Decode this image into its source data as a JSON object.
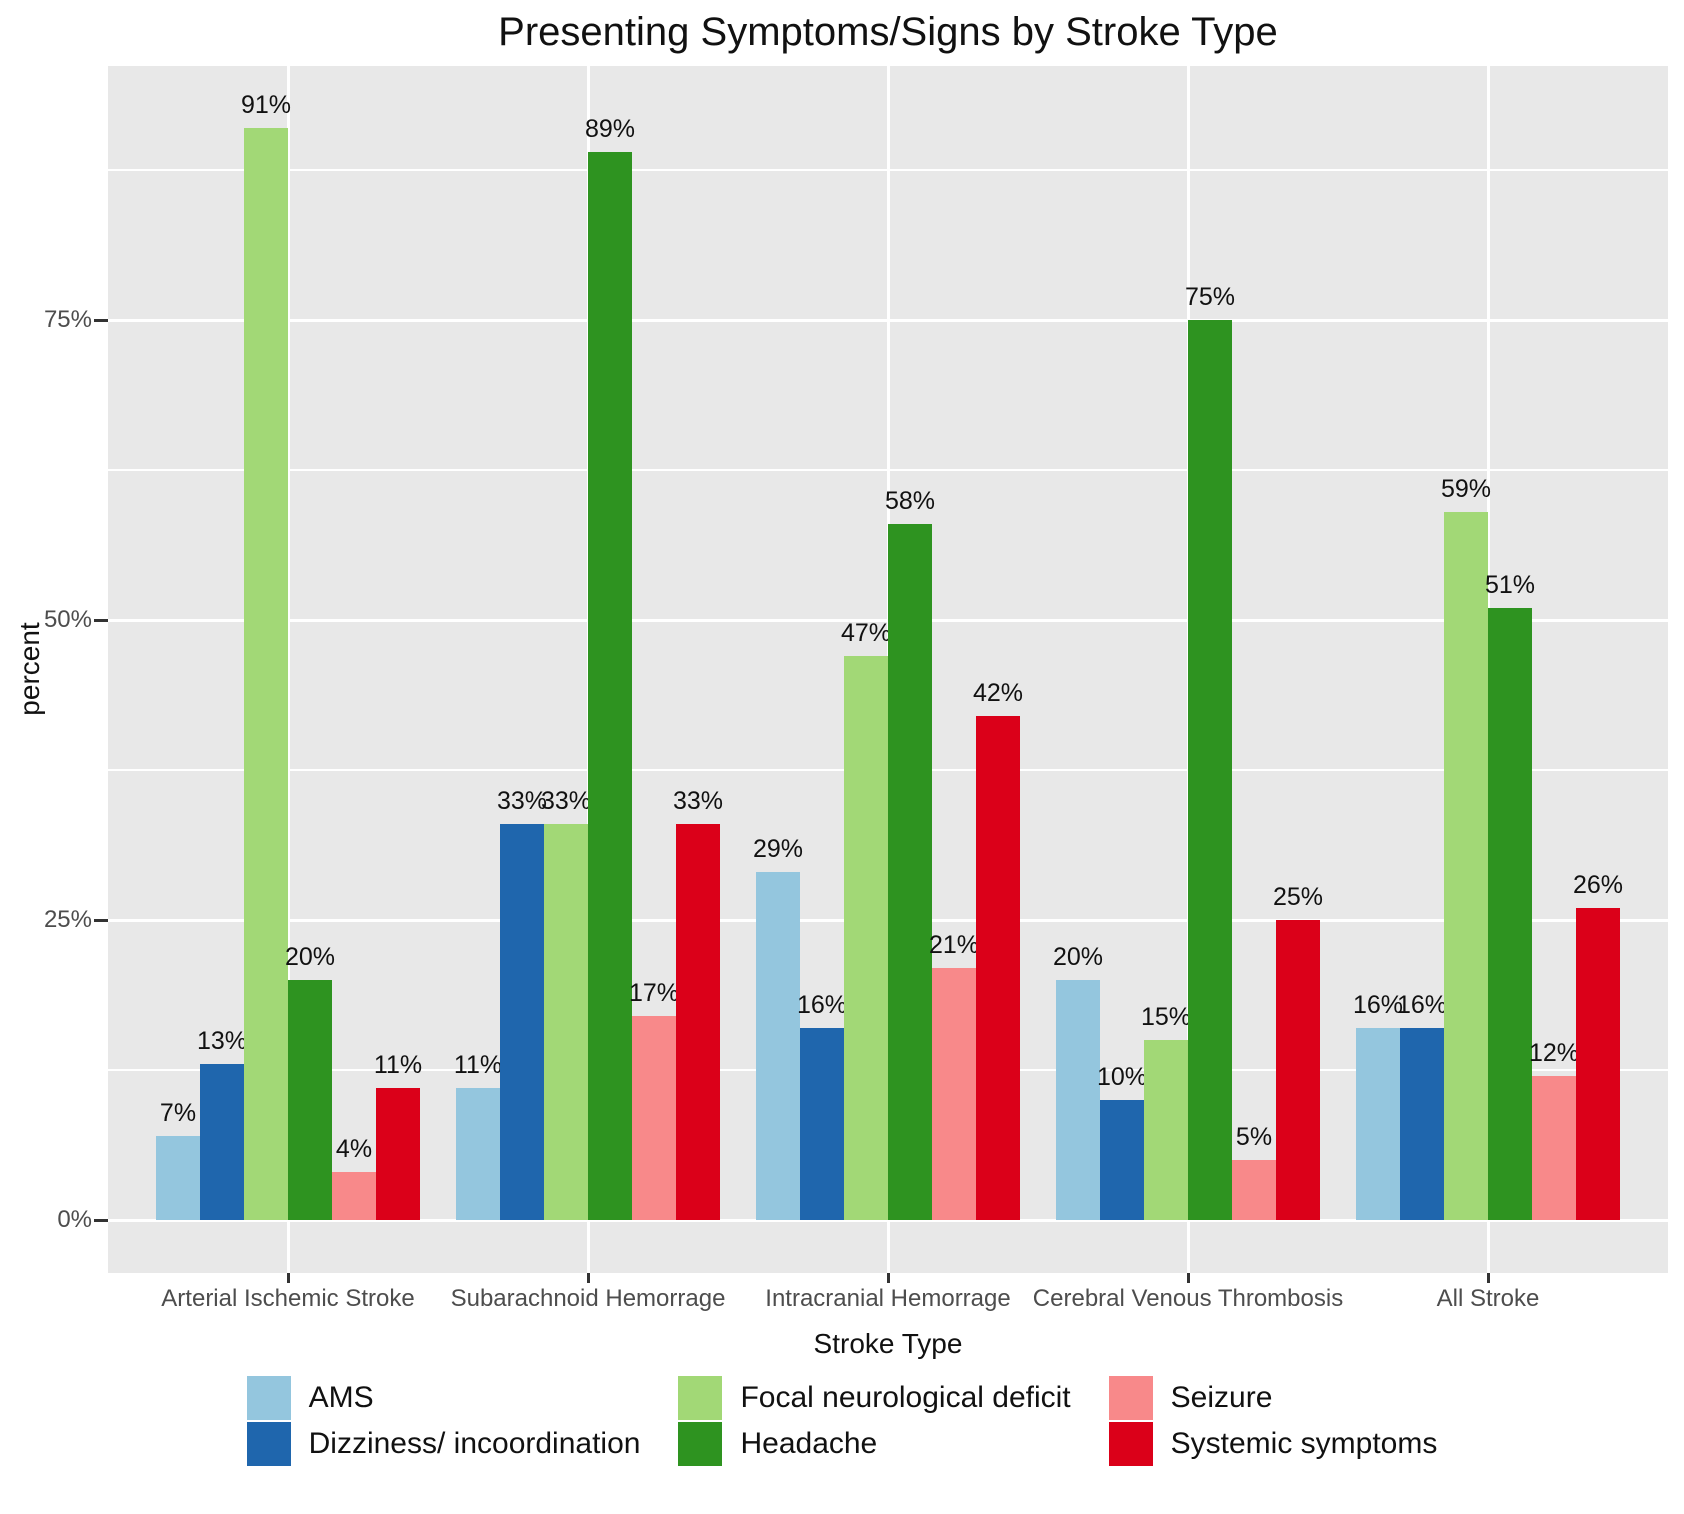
{
  "title": "Presenting Symptoms/Signs by Stroke Type",
  "axes": {
    "y": {
      "title": "percent",
      "tick_labels": [
        "0%",
        "25%",
        "50%",
        "75%"
      ],
      "tick_values": [
        0,
        25,
        50,
        75
      ],
      "minor_gridline_values": [
        12.5,
        37.5,
        62.5,
        87.5
      ]
    },
    "x": {
      "title": "Stroke Type"
    }
  },
  "chart_data": {
    "type": "bar",
    "orientation": "vertical-grouped",
    "title": "Presenting Symptoms/Signs by Stroke Type",
    "xlabel": "Stroke Type",
    "ylabel": "percent",
    "ylim": [
      0,
      96
    ],
    "y_ticks": [
      0,
      25,
      50,
      75
    ],
    "grid": "white major+minor horizontal, white major vertical on gray panel",
    "legend_position": "bottom",
    "value_label_suffix": "%",
    "categories": [
      "Arterial Ischemic Stroke",
      "Subarachnoid Hemorrage",
      "Intracranial Hemorrage",
      "Cerebral Venous Thrombosis",
      "All Stroke"
    ],
    "series": [
      {
        "name": "AMS",
        "color": "#94C6DE",
        "values": [
          7,
          11,
          29,
          20,
          16
        ]
      },
      {
        "name": "Dizziness/ incoordination",
        "color": "#1F66AD",
        "values": [
          13,
          33,
          16,
          10,
          16
        ]
      },
      {
        "name": "Focal neurological deficit",
        "color": "#A2D876",
        "values": [
          91,
          33,
          47,
          15,
          59
        ]
      },
      {
        "name": "Headache",
        "color": "#2E9320",
        "values": [
          20,
          89,
          58,
          75,
          51
        ]
      },
      {
        "name": "Seizure",
        "color": "#F8898A",
        "values": [
          4,
          17,
          21,
          5,
          12
        ]
      },
      {
        "name": "Systemic symptoms",
        "color": "#DB0019",
        "values": [
          11,
          33,
          42,
          25,
          26
        ]
      }
    ]
  },
  "legend": {
    "columns": [
      [
        {
          "label": "AMS",
          "color": "#94C6DE"
        },
        {
          "label": "Dizziness/ incoordination",
          "color": "#1F66AD"
        }
      ],
      [
        {
          "label": "Focal neurological deficit",
          "color": "#A2D876"
        },
        {
          "label": "Headache",
          "color": "#2E9320"
        }
      ],
      [
        {
          "label": "Seizure",
          "color": "#F8898A"
        },
        {
          "label": "Systemic symptoms",
          "color": "#DB0019"
        }
      ]
    ]
  },
  "colors": {
    "panel_background": "#E8E8E8",
    "gridline": "#FFFFFF",
    "tick_text": "#4D4D4D",
    "text": "#111111"
  }
}
